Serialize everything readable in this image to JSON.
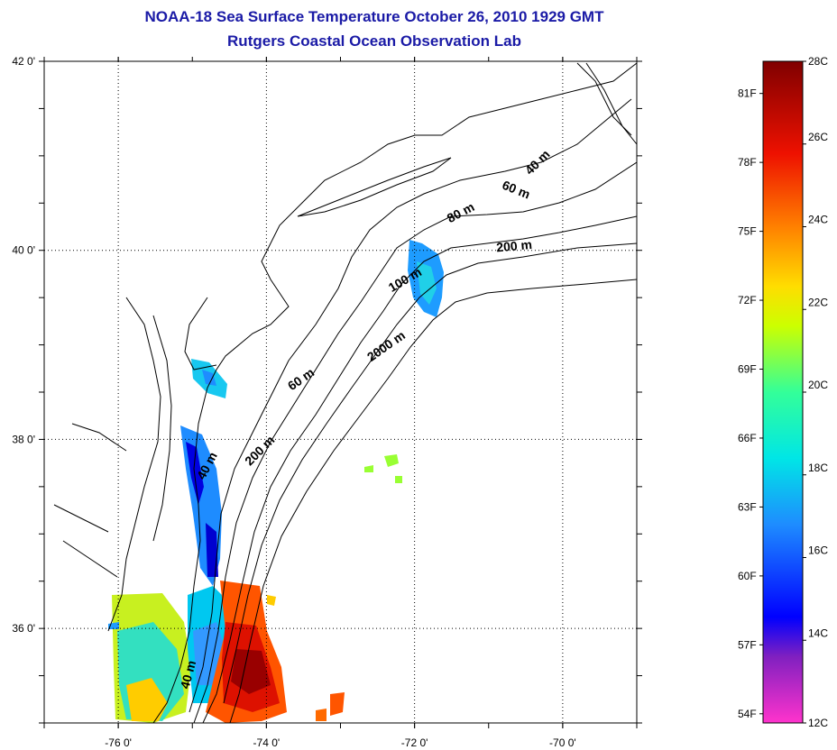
{
  "title": {
    "line1": "NOAA-18 Sea Surface Temperature October 26, 2010 1929 GMT",
    "line2": "Rutgers Coastal Ocean Observation Lab"
  },
  "map": {
    "lon_range": [
      -77,
      -69
    ],
    "lat_range": [
      35,
      42
    ],
    "lon_ticks": [
      {
        "value": -76,
        "label": "-76 0'"
      },
      {
        "value": -74,
        "label": "-74 0'"
      },
      {
        "value": -72,
        "label": "-72 0'"
      },
      {
        "value": -70,
        "label": "-70 0'"
      }
    ],
    "lat_ticks": [
      {
        "value": 42,
        "label": "42 0'"
      },
      {
        "value": 40,
        "label": "40 0'"
      },
      {
        "value": 38,
        "label": "38 0'"
      },
      {
        "value": 36,
        "label": "36 0'"
      }
    ],
    "grid": "dotted",
    "contour_labels": [
      {
        "text": "40 m",
        "lon": -70.3,
        "lat": 40.9,
        "angle": -45
      },
      {
        "text": "60 m",
        "lon": -70.65,
        "lat": 40.6,
        "angle": 22
      },
      {
        "text": "80 m",
        "lon": -71.35,
        "lat": 40.36,
        "angle": -28
      },
      {
        "text": "200 m",
        "lon": -70.65,
        "lat": 40.0,
        "angle": -5
      },
      {
        "text": "100 m",
        "lon": -72.1,
        "lat": 39.65,
        "angle": -30
      },
      {
        "text": "2000 m",
        "lon": -72.35,
        "lat": 38.95,
        "angle": -35
      },
      {
        "text": "60 m",
        "lon": -73.5,
        "lat": 38.6,
        "angle": -35
      },
      {
        "text": "200 m",
        "lon": -74.05,
        "lat": 37.85,
        "angle": -45
      },
      {
        "text": "40 m",
        "lon": -74.75,
        "lat": 37.7,
        "angle": -62
      },
      {
        "text": "40 m",
        "lon": -75.0,
        "lat": 35.5,
        "angle": -75
      }
    ]
  },
  "colorbar": {
    "c_min": 12,
    "c_max": 28,
    "celsius_ticks": [
      "28C",
      "26C",
      "24C",
      "22C",
      "20C",
      "18C",
      "16C",
      "14C",
      "12C"
    ],
    "fahrenheit_ticks": [
      "81F",
      "78F",
      "75F",
      "72F",
      "69F",
      "66F",
      "63F",
      "60F",
      "57F",
      "54F"
    ],
    "fahrenheit_values": [
      81,
      78,
      75,
      72,
      69,
      66,
      63,
      60,
      57,
      54
    ],
    "colors": [
      "#ff33cc",
      "#8020c0",
      "#0000ff",
      "#1e8cff",
      "#00e6e6",
      "#33ff99",
      "#ccff00",
      "#ffdd00",
      "#ff8000",
      "#ee1100",
      "#800000"
    ]
  }
}
